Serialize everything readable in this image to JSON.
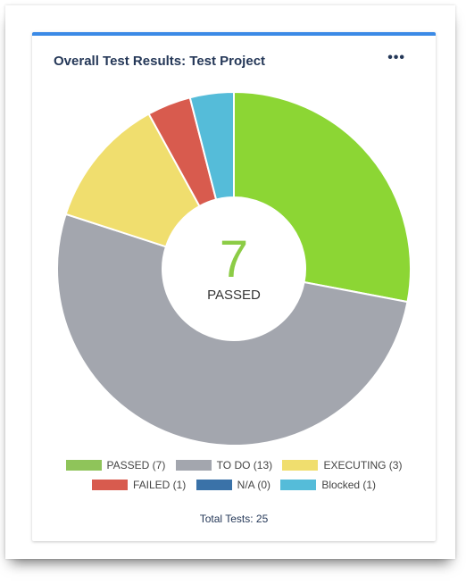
{
  "card": {
    "title": "Overall Test Results: Test Project",
    "menu_icon": "more-horizontal-icon",
    "menu_label": "•••",
    "total_label": "Total Tests: 25"
  },
  "center": {
    "value": "7",
    "label": "PASSED"
  },
  "colors": {
    "accent": "#3b8ae6",
    "passed": "#8cd634",
    "todo": "#a3a6ae",
    "executing": "#f0de6e",
    "failed": "#d85b4e",
    "na": "#3a72a8",
    "blocked": "#55bcd9"
  },
  "chart_data": {
    "type": "pie",
    "title": "Overall Test Results: Test Project",
    "categories": [
      "PASSED",
      "TO DO",
      "EXECUTING",
      "FAILED",
      "N/A",
      "Blocked"
    ],
    "values": [
      7,
      13,
      3,
      1,
      0,
      1
    ],
    "colors": [
      "#8cd634",
      "#a3a6ae",
      "#f0de6e",
      "#d85b4e",
      "#3a72a8",
      "#55bcd9"
    ],
    "legend_position": "bottom",
    "total": 25
  },
  "legend": {
    "row1": [
      {
        "label": "PASSED (7)",
        "color": "#8fc45a"
      },
      {
        "label": "TO DO (13)",
        "color": "#a3a6ae"
      },
      {
        "label": "EXECUTING (3)",
        "color": "#f0de6e"
      }
    ],
    "row2": [
      {
        "label": "FAILED (1)",
        "color": "#d85b4e"
      },
      {
        "label": "N/A (0)",
        "color": "#3a72a8"
      },
      {
        "label": "Blocked (1)",
        "color": "#55bcd9"
      }
    ]
  }
}
